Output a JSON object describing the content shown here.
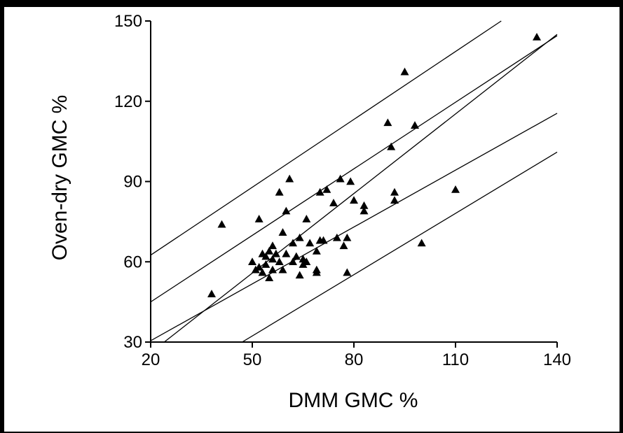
{
  "chart_data": {
    "type": "scatter",
    "title": "",
    "xlabel": "DMM GMC %",
    "ylabel": "Oven-dry GMC %",
    "xlim": [
      20,
      140
    ],
    "ylim": [
      30,
      150
    ],
    "xticks": [
      "20",
      "50",
      "80",
      "110",
      "140"
    ],
    "yticks": [
      "30",
      "60",
      "90",
      "120",
      "150"
    ],
    "grid": false,
    "legend": "none",
    "marker": "triangle",
    "marker_color": "#000000",
    "line_color": "#000000",
    "points": [
      {
        "x": 38,
        "y": 48
      },
      {
        "x": 41,
        "y": 74
      },
      {
        "x": 50,
        "y": 60
      },
      {
        "x": 51,
        "y": 57
      },
      {
        "x": 52,
        "y": 76
      },
      {
        "x": 52,
        "y": 58
      },
      {
        "x": 53,
        "y": 63
      },
      {
        "x": 53,
        "y": 56
      },
      {
        "x": 54,
        "y": 62
      },
      {
        "x": 54,
        "y": 59
      },
      {
        "x": 55,
        "y": 64
      },
      {
        "x": 55,
        "y": 54
      },
      {
        "x": 56,
        "y": 61
      },
      {
        "x": 56,
        "y": 57
      },
      {
        "x": 56,
        "y": 66
      },
      {
        "x": 57,
        "y": 63
      },
      {
        "x": 58,
        "y": 86
      },
      {
        "x": 58,
        "y": 60
      },
      {
        "x": 59,
        "y": 71
      },
      {
        "x": 59,
        "y": 57
      },
      {
        "x": 60,
        "y": 79
      },
      {
        "x": 60,
        "y": 63
      },
      {
        "x": 61,
        "y": 91
      },
      {
        "x": 62,
        "y": 67
      },
      {
        "x": 62,
        "y": 60
      },
      {
        "x": 63,
        "y": 62
      },
      {
        "x": 64,
        "y": 69
      },
      {
        "x": 64,
        "y": 55
      },
      {
        "x": 65,
        "y": 61
      },
      {
        "x": 65,
        "y": 59
      },
      {
        "x": 66,
        "y": 76
      },
      {
        "x": 66,
        "y": 60
      },
      {
        "x": 67,
        "y": 67
      },
      {
        "x": 69,
        "y": 64
      },
      {
        "x": 69,
        "y": 57
      },
      {
        "x": 69,
        "y": 56
      },
      {
        "x": 70,
        "y": 86
      },
      {
        "x": 70,
        "y": 68
      },
      {
        "x": 71,
        "y": 68
      },
      {
        "x": 72,
        "y": 87
      },
      {
        "x": 74,
        "y": 82
      },
      {
        "x": 75,
        "y": 69
      },
      {
        "x": 76,
        "y": 91
      },
      {
        "x": 77,
        "y": 66
      },
      {
        "x": 78,
        "y": 56
      },
      {
        "x": 78,
        "y": 69
      },
      {
        "x": 79,
        "y": 90
      },
      {
        "x": 80,
        "y": 83
      },
      {
        "x": 83,
        "y": 81
      },
      {
        "x": 83,
        "y": 79
      },
      {
        "x": 90,
        "y": 112
      },
      {
        "x": 91,
        "y": 103
      },
      {
        "x": 92,
        "y": 83
      },
      {
        "x": 92,
        "y": 86
      },
      {
        "x": 95,
        "y": 131
      },
      {
        "x": 98,
        "y": 111
      },
      {
        "x": 100,
        "y": 67
      },
      {
        "x": 110,
        "y": 87
      },
      {
        "x": 134,
        "y": 144
      }
    ],
    "lines": [
      {
        "x1": 20,
        "y1": 62.5,
        "x2": 123.5,
        "y2": 150
      },
      {
        "x1": 20,
        "y1": 45,
        "x2": 140,
        "y2": 144.5
      },
      {
        "x1": 24,
        "y1": 30,
        "x2": 140,
        "y2": 145
      },
      {
        "x1": 20,
        "y1": 30.5,
        "x2": 140,
        "y2": 115.5
      },
      {
        "x1": 47,
        "y1": 30,
        "x2": 140,
        "y2": 101
      }
    ]
  }
}
